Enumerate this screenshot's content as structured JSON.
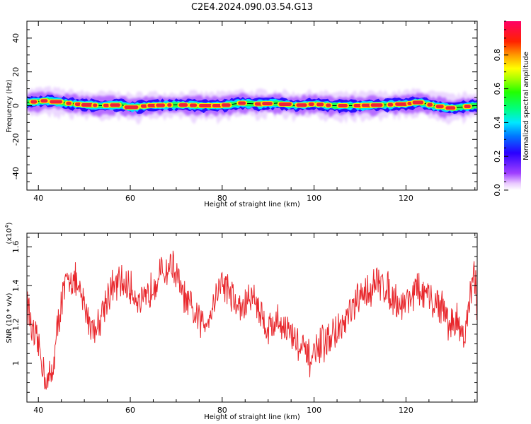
{
  "title": "C2E4.2024.090.03.54.G13",
  "chart_data": [
    {
      "type": "heatmap",
      "title": "",
      "xlabel": "Height of straight line (km)",
      "ylabel": "Frequency (Hz)",
      "xlim": [
        37.5,
        135.5
      ],
      "ylim": [
        -50,
        50
      ],
      "xticks": [
        40,
        60,
        80,
        100,
        120
      ],
      "yticks": [
        -40,
        -20,
        0,
        20,
        40
      ],
      "colorbar": {
        "label": "Normalized spectral amplitude",
        "range": [
          0.0,
          1.0
        ],
        "ticks": [
          0.0,
          0.2,
          0.4,
          0.6,
          0.8
        ],
        "colormap": "rainbow (magenta-blue-cyan-green-yellow-red)"
      },
      "ridge_center_hz": [
        [
          38,
          2.0
        ],
        [
          42,
          3.0
        ],
        [
          46,
          1.5
        ],
        [
          50,
          0.5
        ],
        [
          54,
          0.0
        ],
        [
          58,
          0.5
        ],
        [
          60,
          -1.0
        ],
        [
          64,
          0.0
        ],
        [
          70,
          0.5
        ],
        [
          76,
          0.0
        ],
        [
          80,
          0.0
        ],
        [
          84,
          1.5
        ],
        [
          88,
          1.0
        ],
        [
          92,
          1.5
        ],
        [
          96,
          0.0
        ],
        [
          100,
          1.0
        ],
        [
          104,
          0.0
        ],
        [
          110,
          0.0
        ],
        [
          116,
          0.5
        ],
        [
          120,
          1.0
        ],
        [
          123,
          2.0
        ],
        [
          126,
          0.0
        ],
        [
          130,
          -1.5
        ],
        [
          135,
          0.0
        ]
      ],
      "grid": false
    },
    {
      "type": "line",
      "title": "",
      "xlabel": "Height of straight line (km)",
      "ylabel": "SNR (10 * v/v)",
      "multiplier_label": "(x10^4)",
      "xlim": [
        37.5,
        135.5
      ],
      "ylim": [
        0.8,
        1.67
      ],
      "xticks": [
        40,
        60,
        80,
        100,
        120
      ],
      "yticks": [
        1.0,
        1.2,
        1.4,
        1.6
      ],
      "line_color": "#e8262b",
      "series": [
        {
          "x": [
            37.5,
            38,
            39,
            40,
            41,
            42,
            43,
            44,
            45,
            46,
            47,
            48,
            49,
            50,
            51,
            52,
            53,
            54,
            55,
            56,
            57,
            58,
            59,
            60,
            61,
            62,
            63,
            64,
            65,
            66,
            67,
            68,
            69,
            70,
            71,
            72,
            73,
            74,
            75,
            76,
            77,
            78,
            79,
            80,
            81,
            82,
            83,
            84,
            85,
            86,
            87,
            88,
            89,
            90,
            91,
            92,
            93,
            94,
            95,
            96,
            97,
            98,
            99,
            100,
            101,
            102,
            103,
            104,
            105,
            106,
            107,
            108,
            109,
            110,
            111,
            112,
            113,
            114,
            115,
            116,
            117,
            118,
            119,
            120,
            121,
            122,
            123,
            124,
            125,
            126,
            127,
            128,
            129,
            130,
            131,
            132,
            133,
            134,
            135,
            135.5
          ],
          "y": [
            1.35,
            1.25,
            1.12,
            1.1,
            0.98,
            0.9,
            0.95,
            1.15,
            1.32,
            1.4,
            1.45,
            1.42,
            1.35,
            1.3,
            1.22,
            1.18,
            1.2,
            1.28,
            1.35,
            1.38,
            1.4,
            1.42,
            1.4,
            1.38,
            1.36,
            1.32,
            1.3,
            1.35,
            1.42,
            1.45,
            1.46,
            1.48,
            1.52,
            1.45,
            1.38,
            1.32,
            1.28,
            1.25,
            1.22,
            1.2,
            1.25,
            1.3,
            1.38,
            1.42,
            1.4,
            1.35,
            1.3,
            1.28,
            1.3,
            1.33,
            1.35,
            1.28,
            1.22,
            1.18,
            1.2,
            1.22,
            1.2,
            1.18,
            1.15,
            1.12,
            1.08,
            1.05,
            1.02,
            1.04,
            1.08,
            1.1,
            1.12,
            1.15,
            1.16,
            1.18,
            1.22,
            1.26,
            1.3,
            1.33,
            1.36,
            1.38,
            1.4,
            1.42,
            1.4,
            1.38,
            1.35,
            1.32,
            1.3,
            1.32,
            1.35,
            1.38,
            1.37,
            1.35,
            1.33,
            1.3,
            1.32,
            1.28,
            1.22,
            1.2,
            1.22,
            1.18,
            1.15,
            1.35,
            1.45,
            1.3
          ]
        }
      ],
      "grid": false
    }
  ]
}
